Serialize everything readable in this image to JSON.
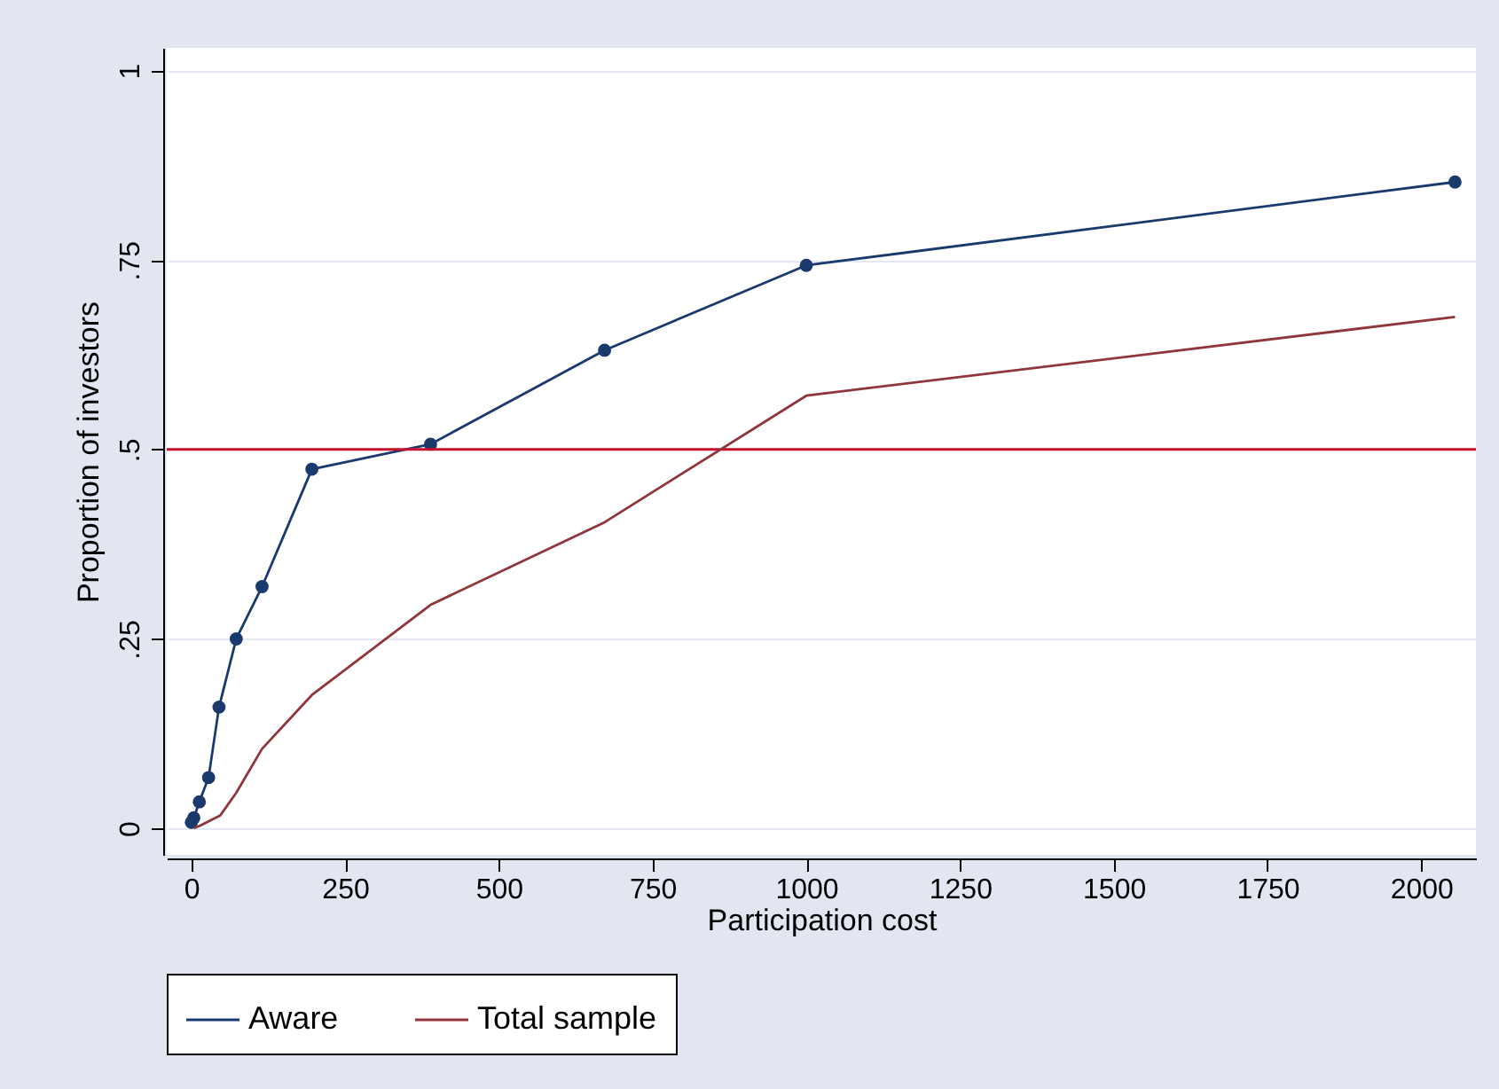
{
  "chart_data": {
    "type": "line",
    "xlabel": "Participation cost",
    "ylabel": "Proportion of investors",
    "xlim": [
      -40,
      2089
    ],
    "xticks": [
      0,
      250,
      500,
      750,
      1000,
      1250,
      1500,
      1750,
      2000
    ],
    "ylim": [
      -0.035,
      1.03
    ],
    "yticks": [
      {
        "value": 0,
        "label": "0"
      },
      {
        "value": 0.25,
        "label": ".25"
      },
      {
        "value": 0.5,
        "label": ".5"
      },
      {
        "value": 0.75,
        "label": ".75"
      },
      {
        "value": 1,
        "label": "1"
      }
    ],
    "grid": "y",
    "legend": "bottom",
    "ref_lines": [
      {
        "axis": "y",
        "value": 0.5,
        "color": "#c8102e"
      }
    ],
    "series": [
      {
        "name": "Aware",
        "color": "#1a3a6e",
        "marker": "circle",
        "x": [
          0,
          4,
          13,
          28,
          45,
          73,
          115,
          196,
          389,
          672,
          1000,
          2055
        ],
        "values": [
          0.008,
          0.014,
          0.035,
          0.067,
          0.16,
          0.25,
          0.319,
          0.474,
          0.507,
          0.631,
          0.743,
          0.853
        ]
      },
      {
        "name": "Total sample",
        "color": "#90353b",
        "marker": "none",
        "x": [
          4,
          15,
          47,
          73,
          115,
          196,
          389,
          672,
          1000,
          2055
        ],
        "values": [
          0.0,
          0.004,
          0.017,
          0.047,
          0.105,
          0.176,
          0.295,
          0.404,
          0.571,
          0.675
        ]
      }
    ]
  }
}
